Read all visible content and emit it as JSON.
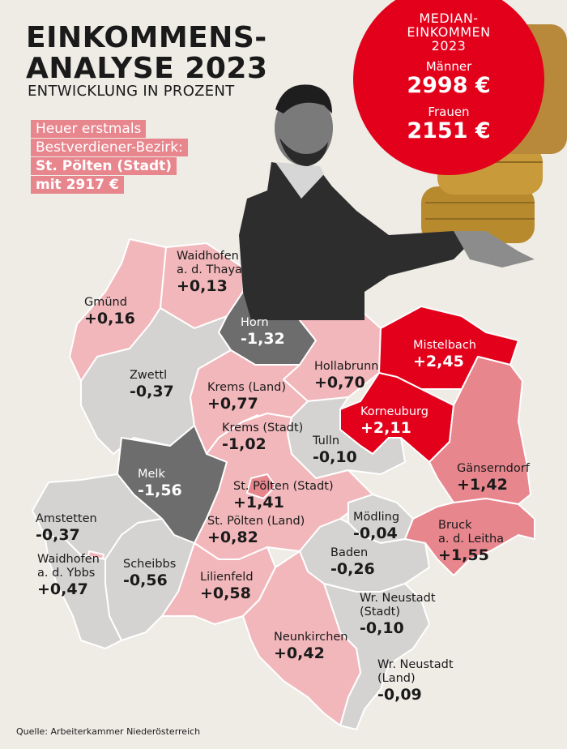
{
  "header": {
    "title_line1": "EINKOMMENS-",
    "title_line2": "ANALYSE 2023",
    "subtitle": "ENTWICKLUNG IN PROZENT"
  },
  "highlight": {
    "line1": "Heuer erstmals",
    "line2": "Bestverdiener-Bezirk:",
    "line3": "St. Pölten (Stadt)",
    "line4": "mit 2917 €"
  },
  "median": {
    "title_line1": "MEDIAN-",
    "title_line2": "EINKOMMEN",
    "title_line3": "2023",
    "men_label": "Männer",
    "men_value": "2998 €",
    "women_label": "Frauen",
    "women_value": "2151 €"
  },
  "districts": [
    {
      "name": "Gmünd",
      "value": "+0,16"
    },
    {
      "name": "Waidhofen a. d. Thaya",
      "value": "+0,13"
    },
    {
      "name": "Horn",
      "value": "-1,32"
    },
    {
      "name": "Mistelbach",
      "value": "+2,45"
    },
    {
      "name": "Hollabrunn",
      "value": "+0,70"
    },
    {
      "name": "Zwettl",
      "value": "-0,37"
    },
    {
      "name": "Krems (Land)",
      "value": "+0,77"
    },
    {
      "name": "Korneuburg",
      "value": "+2,11"
    },
    {
      "name": "Krems (Stadt)",
      "value": "-1,02"
    },
    {
      "name": "Tulln",
      "value": "-0,10"
    },
    {
      "name": "Melk",
      "value": "-1,56"
    },
    {
      "name": "St. Pölten (Stadt)",
      "value": "+1,41"
    },
    {
      "name": "Gänserndorf",
      "value": "+1,42"
    },
    {
      "name": "St. Pölten (Land)",
      "value": "+0,82"
    },
    {
      "name": "Amstetten",
      "value": "-0,37"
    },
    {
      "name": "Mödling",
      "value": "-0,04"
    },
    {
      "name": "Bruck a. d. Leitha",
      "value": "+1,55"
    },
    {
      "name": "Waidhofen a. d. Ybbs",
      "value": "+0,47"
    },
    {
      "name": "Scheibbs",
      "value": "-0,56"
    },
    {
      "name": "Baden",
      "value": "-0,26"
    },
    {
      "name": "Lilienfeld",
      "value": "+0,58"
    },
    {
      "name": "Wr. Neustadt (Stadt)",
      "value": "-0,10"
    },
    {
      "name": "Neunkirchen",
      "value": "+0,42"
    },
    {
      "name": "Wr. Neustadt (Land)",
      "value": "-0,09"
    }
  ],
  "colors": {
    "background": "#efece6",
    "strong_positive": "#e3001b",
    "positive_high": "#e8868e",
    "positive": "#f2b7bb",
    "slight_negative": "#d4d3d1",
    "strong_negative": "#6d6d6d",
    "highlight_box": "#e8868e"
  },
  "source": "Quelle: Arbeiterkammer Niederösterreich"
}
